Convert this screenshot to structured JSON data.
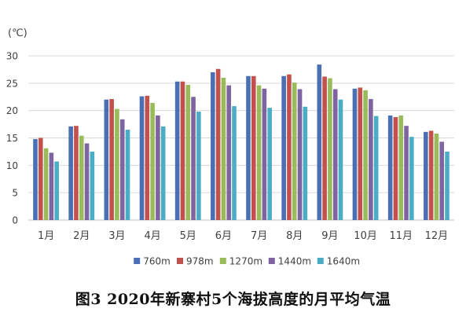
{
  "caption": "图3 2020年新寨村5个海拔高度的月平均气温",
  "chart_data": {
    "type": "bar",
    "unit_label": "(℃)",
    "categories": [
      "1月",
      "2月",
      "3月",
      "4月",
      "5月",
      "6月",
      "7月",
      "8月",
      "9月",
      "10月",
      "11月",
      "12月"
    ],
    "ylim": [
      0,
      30
    ],
    "yticks": [
      0,
      5,
      10,
      15,
      20,
      25,
      30
    ],
    "grid": true,
    "legend_position": "bottom",
    "series": [
      {
        "name": "760m",
        "color": "#4a6fb5",
        "values": [
          14.8,
          17.1,
          22.0,
          22.6,
          25.3,
          27.0,
          26.3,
          26.3,
          28.4,
          24.0,
          19.1,
          16.1
        ]
      },
      {
        "name": "978m",
        "color": "#c2504d",
        "values": [
          15.0,
          17.2,
          22.1,
          22.7,
          25.3,
          27.6,
          26.3,
          26.6,
          26.2,
          24.2,
          18.8,
          16.3
        ]
      },
      {
        "name": "1270m",
        "color": "#9abb59",
        "values": [
          13.1,
          15.4,
          20.3,
          21.4,
          24.7,
          26.0,
          24.6,
          25.1,
          25.9,
          23.7,
          19.1,
          15.8
        ]
      },
      {
        "name": "1440m",
        "color": "#7f64a2",
        "values": [
          12.3,
          14.0,
          18.4,
          19.1,
          22.5,
          24.6,
          24.0,
          23.9,
          23.9,
          22.1,
          17.2,
          14.3
        ]
      },
      {
        "name": "1640m",
        "color": "#4bacc6",
        "values": [
          10.7,
          12.5,
          16.5,
          17.1,
          19.8,
          20.8,
          20.5,
          20.7,
          22.0,
          19.0,
          15.2,
          12.5
        ]
      }
    ]
  }
}
